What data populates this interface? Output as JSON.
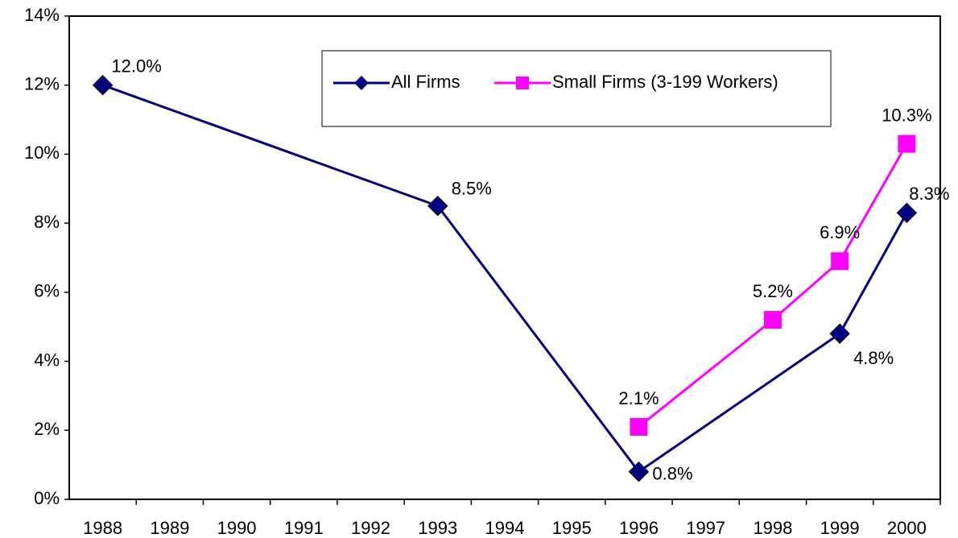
{
  "chart_data": {
    "type": "line",
    "xlim": [
      1987.5,
      2000.5
    ],
    "xticks": [
      1988,
      1989,
      1990,
      1991,
      1992,
      1993,
      1994,
      1995,
      1996,
      1997,
      1998,
      1999,
      2000
    ],
    "ylim": [
      0,
      14
    ],
    "yticks": [
      {
        "value": 0,
        "label": "0%"
      },
      {
        "value": 2,
        "label": "2%"
      },
      {
        "value": 4,
        "label": "4%"
      },
      {
        "value": 6,
        "label": "6%"
      },
      {
        "value": 8,
        "label": "8%"
      },
      {
        "value": 10,
        "label": "10%"
      },
      {
        "value": 12,
        "label": "12%"
      },
      {
        "value": 14,
        "label": "14%"
      }
    ],
    "grid": false,
    "legend": "top",
    "series": [
      {
        "name": "All Firms",
        "color": "#000080",
        "marker": "diamond",
        "x": [
          1988,
          1993,
          1996,
          1999,
          2000
        ],
        "values": [
          12.0,
          8.5,
          0.8,
          4.8,
          8.3
        ],
        "value_labels": [
          "12.0%",
          "8.5%",
          "0.8%",
          "4.8%",
          "8.3%"
        ]
      },
      {
        "name": "Small Firms (3-199 Workers)",
        "color": "#ff00ff",
        "marker": "square",
        "x": [
          1996,
          1998,
          1999,
          2000
        ],
        "values": [
          2.1,
          5.2,
          6.9,
          10.3
        ],
        "value_labels": [
          "2.1%",
          "5.2%",
          "6.9%",
          "10.3%"
        ]
      }
    ]
  }
}
